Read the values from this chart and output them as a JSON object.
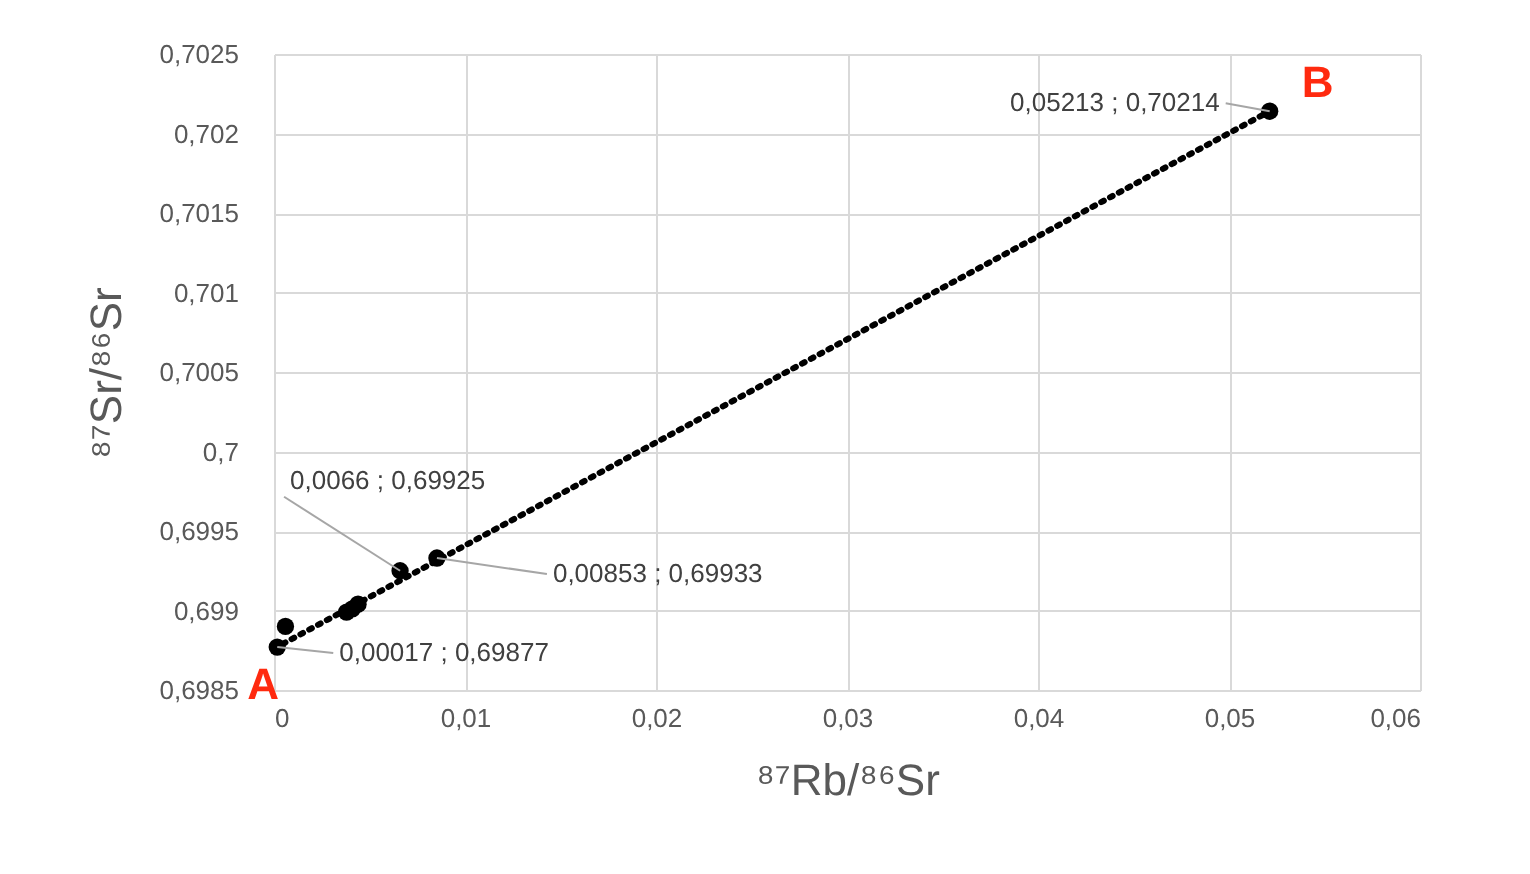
{
  "chart_data": {
    "type": "scatter",
    "xlabel": "⁸⁷Rb/⁸⁶Sr",
    "ylabel": "⁸⁷Sr/⁸⁶Sr",
    "series": [
      {
        "type": "scatter",
        "color": "#000000",
        "marker": "circle",
        "x": [
          0.00017,
          0.0006,
          0.0038,
          0.0041,
          0.0044,
          0.0066,
          0.00853,
          0.05213
        ],
        "values": [
          0.69877,
          0.6989,
          0.69899,
          0.69901,
          0.69904,
          0.69925,
          0.69933,
          0.70214
        ]
      },
      {
        "type": "line",
        "color": "#000000",
        "line_style": "dotted",
        "marker": "none",
        "x": [
          0,
          0.05213
        ],
        "values": [
          0.69876,
          0.70214
        ]
      }
    ],
    "xlim": [
      0,
      0.06
    ],
    "xticks": [
      0,
      {
        "value": 0.01,
        "label": "0,01"
      },
      {
        "value": 0.02,
        "label": "0,02"
      },
      {
        "value": 0.03,
        "label": "0,03"
      },
      {
        "value": 0.04,
        "label": "0,04"
      },
      {
        "value": 0.05,
        "label": "0,05"
      },
      {
        "value": 0.06,
        "label": "0,06"
      }
    ],
    "ylim": [
      0.6985,
      0.7025
    ],
    "yticks": [
      {
        "value": 0.6985,
        "label": "0,6985"
      },
      {
        "value": 0.699,
        "label": "0,699"
      },
      {
        "value": 0.6995,
        "label": "0,6995"
      },
      {
        "value": 0.7,
        "label": "0,7"
      },
      {
        "value": 0.7005,
        "label": "0,7005"
      },
      {
        "value": 0.701,
        "label": "0,701"
      },
      {
        "value": 0.7015,
        "label": "0,7015"
      },
      {
        "value": 0.702,
        "label": "0,702"
      },
      {
        "value": 0.7025,
        "label": "0,7025"
      }
    ],
    "grid": true,
    "annotations": [
      {
        "text": "0,05213 ; 0,70214",
        "x": 0.05213,
        "y": 0.70214
      },
      {
        "text": "0,0066 ; 0,69925",
        "x": 0.0066,
        "y": 0.69925
      },
      {
        "text": "0,00853 ; 0,69933",
        "x": 0.00853,
        "y": 0.69933
      },
      {
        "text": "0,00017 ; 0,69877",
        "x": 0.00017,
        "y": 0.69877
      },
      {
        "text": "A",
        "x": 0.00017,
        "y": 0.69877
      },
      {
        "text": "B",
        "x": 0.05213,
        "y": 0.70214
      }
    ]
  }
}
